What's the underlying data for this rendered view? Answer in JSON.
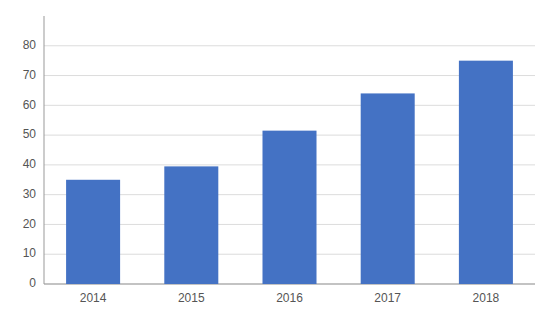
{
  "chart_data": {
    "type": "bar",
    "categories": [
      "2014",
      "2015",
      "2016",
      "2017",
      "2018"
    ],
    "values": [
      35,
      39.5,
      51.5,
      64,
      75
    ],
    "color": "#4472C4",
    "ylim": [
      0,
      90
    ],
    "yticks": [
      0,
      10,
      20,
      30,
      40,
      50,
      60,
      70,
      80
    ],
    "grid": true
  }
}
